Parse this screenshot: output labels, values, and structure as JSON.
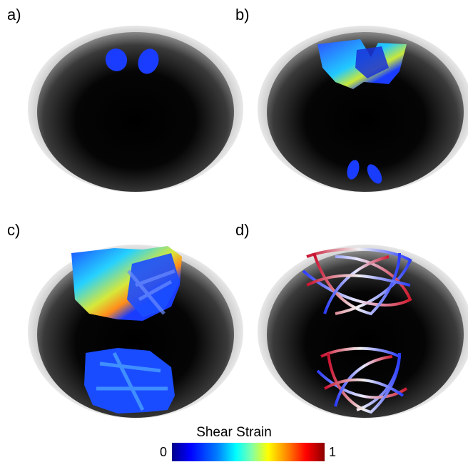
{
  "panels": [
    {
      "id": "a",
      "label": "a)"
    },
    {
      "id": "b",
      "label": "b)"
    },
    {
      "id": "c",
      "label": "c)"
    },
    {
      "id": "d",
      "label": "d)"
    }
  ],
  "colorbar": {
    "title": "Shear Strain",
    "min_label": "0",
    "max_label": "1",
    "colormap": [
      "#00008b",
      "#0000ff",
      "#0080ff",
      "#00ffff",
      "#7fffaa",
      "#ffff00",
      "#ff8000",
      "#ff0000",
      "#8b0000"
    ]
  },
  "colors": {
    "sphere_shell": "#d9d9d9",
    "sphere_interior": "#000000",
    "low_strain": "#1a3cff"
  }
}
